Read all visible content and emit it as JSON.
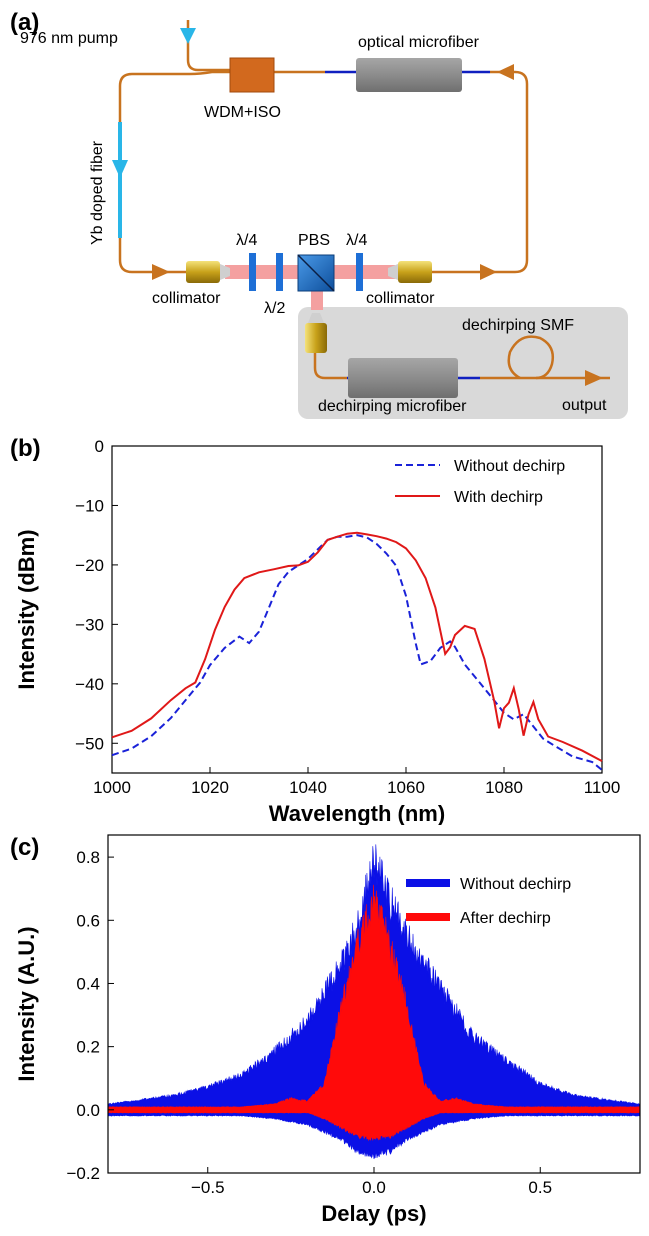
{
  "panel_a": {
    "label": "(a)",
    "pump": "976 nm pump",
    "microfiber": "optical microfiber",
    "wdm": "WDM+ISO",
    "yb_fiber": "Yb doped fiber",
    "qwp_left": "λ/4",
    "pbs": "PBS",
    "qwp_right": "λ/4",
    "hwp": "λ/2",
    "collimator_left": "collimator",
    "collimator_right": "collimator",
    "dechirp_smf": "dechirping SMF",
    "dechirp_microfiber": "dechirping microfiber",
    "output": "output",
    "colors": {
      "fiber": "#c8731f",
      "pump_arrow": "#29b6e8",
      "wdm": "#d2691e",
      "microfiber": "#8c8c8c",
      "blue_line": "#1020c0",
      "beam": "#f4a0a0",
      "pbs": "#1e6fc0",
      "inset_bg": "#d9d9d9"
    }
  },
  "chart_data": [
    {
      "label": "(b)",
      "type": "line",
      "xlabel": "Wavelength (nm)",
      "ylabel": "Intensity (dBm)",
      "xlim": [
        1000,
        1100
      ],
      "ylim": [
        -55,
        0
      ],
      "xticks": [
        1000,
        1020,
        1040,
        1060,
        1080,
        1100
      ],
      "yticks": [
        0,
        -10,
        -20,
        -30,
        -40,
        -50
      ],
      "legend_position": "top-right",
      "grid": false,
      "series": [
        {
          "name": "Without dechirp",
          "color": "#1a22d8",
          "style": "dashed",
          "x": [
            1000,
            1004,
            1008,
            1012,
            1016,
            1018,
            1020,
            1023,
            1026,
            1028,
            1030,
            1032,
            1034,
            1036,
            1038,
            1040,
            1042,
            1044,
            1046,
            1048,
            1050,
            1052,
            1054,
            1056,
            1058,
            1060,
            1062,
            1063,
            1065,
            1066,
            1067,
            1069,
            1070,
            1072,
            1075,
            1078,
            1080,
            1082,
            1084,
            1086,
            1088,
            1090,
            1094,
            1098,
            1100
          ],
          "y": [
            -52,
            -51,
            -49,
            -46,
            -42,
            -40,
            -37,
            -34,
            -32,
            -33,
            -31,
            -27,
            -23,
            -21,
            -20,
            -19,
            -17.5,
            -16,
            -15.5,
            -15.5,
            -15.2,
            -15.5,
            -16.5,
            -18,
            -20,
            -25,
            -33,
            -36.5,
            -36,
            -35,
            -34,
            -33,
            -34,
            -37,
            -40,
            -43,
            -45,
            -46,
            -45,
            -47,
            -49,
            -50,
            -52,
            -53,
            -54.5
          ]
        },
        {
          "name": "With dechirp",
          "color": "#e01818",
          "style": "solid",
          "x": [
            1000,
            1004,
            1008,
            1012,
            1015,
            1017,
            1019,
            1021,
            1023,
            1025,
            1027,
            1030,
            1033,
            1036,
            1038,
            1040,
            1042,
            1044,
            1046,
            1048,
            1050,
            1052,
            1054,
            1056,
            1058,
            1060,
            1062,
            1064,
            1066,
            1067,
            1068,
            1069,
            1070,
            1072,
            1074,
            1076,
            1078,
            1079,
            1080,
            1081,
            1082,
            1083,
            1084,
            1085,
            1086,
            1087,
            1089,
            1092,
            1096,
            1100
          ],
          "y": [
            -49,
            -48,
            -46,
            -43,
            -41,
            -40,
            -36,
            -31,
            -27,
            -24,
            -22,
            -21,
            -20.5,
            -20,
            -20,
            -19.5,
            -18,
            -16,
            -15.5,
            -15,
            -14.8,
            -15,
            -15.2,
            -15.5,
            -16,
            -17,
            -19,
            -22,
            -27,
            -31,
            -35,
            -34,
            -32,
            -30.5,
            -31,
            -36,
            -43,
            -47.5,
            -44,
            -43,
            -40.5,
            -44,
            -48.5,
            -45,
            -43,
            -46,
            -49,
            -50,
            -51.5,
            -53
          ]
        }
      ]
    },
    {
      "label": "(c)",
      "type": "area",
      "xlabel": "Delay (ps)",
      "ylabel": "Intensity (A.U.)",
      "xlim": [
        -0.8,
        0.8
      ],
      "ylim": [
        -0.2,
        0.87
      ],
      "xticks": [
        -0.5,
        0.0,
        0.5
      ],
      "yticks": [
        -0.2,
        0.0,
        0.2,
        0.4,
        0.6,
        0.8
      ],
      "legend_position": "top-right",
      "grid": false,
      "series": [
        {
          "name": "Without dechirp",
          "color": "#0b10e6",
          "x": [
            -0.8,
            -0.6,
            -0.5,
            -0.4,
            -0.3,
            -0.2,
            -0.1,
            -0.05,
            0.0,
            0.05,
            0.1,
            0.2,
            0.3,
            0.4,
            0.5,
            0.6,
            0.8
          ],
          "upper": [
            0.02,
            0.05,
            0.08,
            0.12,
            0.2,
            0.31,
            0.5,
            0.64,
            0.86,
            0.72,
            0.6,
            0.42,
            0.25,
            0.17,
            0.09,
            0.05,
            0.02
          ],
          "lower": [
            -0.02,
            -0.02,
            -0.02,
            -0.02,
            -0.03,
            -0.05,
            -0.1,
            -0.14,
            -0.16,
            -0.14,
            -0.1,
            -0.05,
            -0.03,
            -0.02,
            -0.02,
            -0.02,
            -0.02
          ]
        },
        {
          "name": "After dechirp",
          "color": "#ff0a0a",
          "x": [
            -0.8,
            -0.4,
            -0.3,
            -0.25,
            -0.2,
            -0.15,
            -0.1,
            -0.05,
            0.0,
            0.05,
            0.1,
            0.15,
            0.2,
            0.25,
            0.3,
            0.4,
            0.8
          ],
          "upper": [
            0.01,
            0.01,
            0.02,
            0.04,
            0.03,
            0.09,
            0.35,
            0.57,
            0.72,
            0.57,
            0.35,
            0.09,
            0.03,
            0.04,
            0.02,
            0.01,
            0.01
          ],
          "lower": [
            -0.01,
            -0.01,
            -0.01,
            -0.01,
            -0.01,
            -0.03,
            -0.06,
            -0.09,
            -0.1,
            -0.09,
            -0.06,
            -0.03,
            -0.01,
            -0.01,
            -0.01,
            -0.01,
            -0.01
          ]
        }
      ]
    }
  ]
}
